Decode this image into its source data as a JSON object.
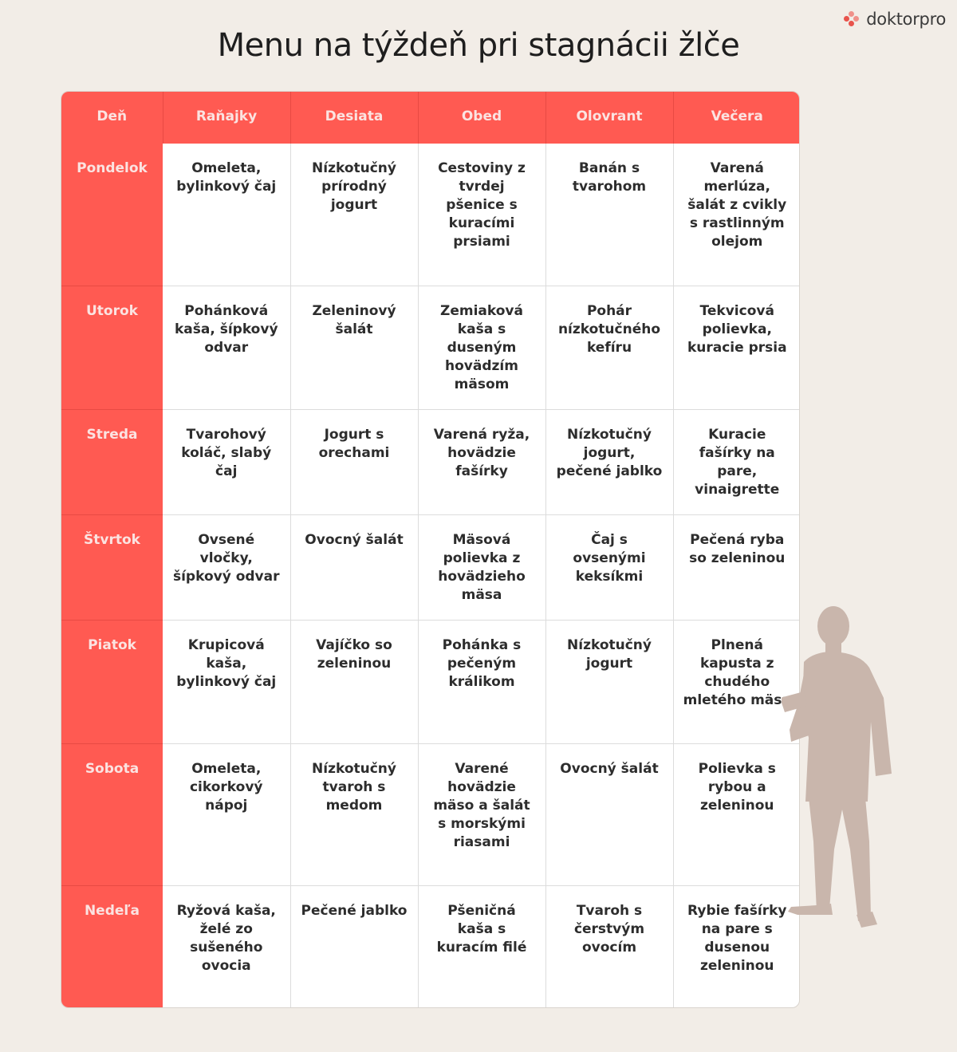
{
  "brand": {
    "name": "doktorpro",
    "mark_colors": [
      "#f0918a",
      "#e8534c"
    ]
  },
  "title": "Menu na týždeň pri stagnácii žlče",
  "colors": {
    "accent": "#ff5a52",
    "header_text": "#fbe3e1",
    "background": "#f2ede7",
    "figure": "#c9b6ac"
  },
  "table": {
    "headers": [
      "Deň",
      "Raňajky",
      "Desiata",
      "Obed",
      "Olovrant",
      "Večera"
    ],
    "rows": [
      {
        "day": "Pondelok",
        "cells": [
          "Omeleta, bylinkový čaj",
          "Nízkotučný prírodný jogurt",
          "Cestoviny z tvrdej pšenice s kuracími prsiami",
          "Banán s tvarohom",
          "Varená merlúza, šalát z cvikly s rastlinným olejom"
        ]
      },
      {
        "day": "Utorok",
        "cells": [
          "Pohánková kaša, šípkový odvar",
          "Zeleninový šalát",
          "Zemiaková kaša s duseným hovädzím mäsom",
          "Pohár nízkotučného kefíru",
          "Tekvicová polievka, kuracie prsia"
        ]
      },
      {
        "day": "Streda",
        "cells": [
          "Tvarohový koláč, slabý čaj",
          "Jogurt s orechami",
          "Varená ryža, hovädzie fašírky",
          "Nízkotučný jogurt, pečené jablko",
          "Kuracie fašírky na pare, vinaigrette"
        ]
      },
      {
        "day": "Štvrtok",
        "cells": [
          "Ovsené vločky, šípkový odvar",
          "Ovocný šalát",
          "Mäsová polievka z hovädzieho mäsa",
          "Čaj s ovsenými keksíkmi",
          "Pečená ryba so zeleninou"
        ]
      },
      {
        "day": "Piatok",
        "cells": [
          "Krupicová kaša, bylinkový čaj",
          "Vajíčko so zeleninou",
          "Pohánka s pečeným králikom",
          "Nízkotučný jogurt",
          "Plnená kapusta z chudého mletého mäsa"
        ]
      },
      {
        "day": "Sobota",
        "cells": [
          "Omeleta, cikorkový nápoj",
          "Nízkotučný tvaroh s medom",
          "Varené hovädzie mäso a šalát s morskými riasami",
          "Ovocný šalát",
          "Polievka s rybou a zeleninou"
        ]
      },
      {
        "day": "Nedeľa",
        "cells": [
          "Ryžová kaša, želé zo sušeného ovocia",
          "Pečené jablko",
          "Pšeničná kaša s kuracím filé",
          "Tvaroh s čerstvým ovocím",
          "Rybie fašírky na pare s dusenou zeleninou"
        ]
      }
    ]
  }
}
